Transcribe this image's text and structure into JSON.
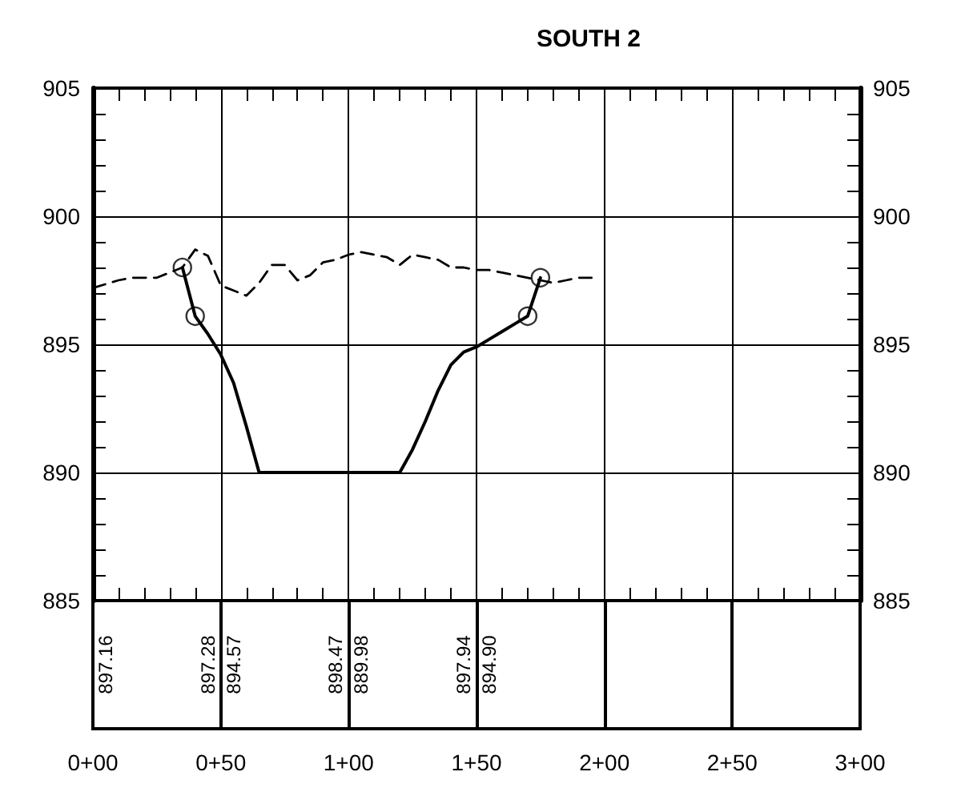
{
  "chart_data": {
    "type": "line",
    "title": "SOUTH 2",
    "categories": [
      "0+00",
      null,
      null,
      null,
      null,
      null,
      null,
      null,
      null,
      null,
      "0+50",
      null,
      null,
      null,
      null,
      null,
      null,
      null,
      null,
      null,
      "1+00",
      null,
      null,
      null,
      null,
      null,
      null,
      null,
      null,
      null,
      "1+50",
      null,
      null,
      null,
      null,
      null,
      null,
      null,
      null,
      null,
      "2+00",
      null,
      null,
      null,
      null,
      null,
      null,
      null,
      null,
      null,
      "2+50",
      null,
      null,
      null,
      null,
      null,
      null,
      null,
      null,
      null,
      "3+00"
    ],
    "ylim": [
      885,
      905
    ],
    "yticks": [
      885,
      {
        "value": 886,
        "label": null
      },
      {
        "value": 887,
        "label": null
      },
      {
        "value": 888,
        "label": null
      },
      {
        "value": 889,
        "label": null
      },
      890,
      {
        "value": 891,
        "label": null
      },
      {
        "value": 892,
        "label": null
      },
      {
        "value": 893,
        "label": null
      },
      {
        "value": 894,
        "label": null
      },
      895,
      {
        "value": 896,
        "label": null
      },
      {
        "value": 897,
        "label": null
      },
      {
        "value": 898,
        "label": null
      },
      {
        "value": 899,
        "label": null
      },
      900,
      {
        "value": 901,
        "label": null
      },
      {
        "value": 902,
        "label": null
      },
      {
        "value": 903,
        "label": null
      },
      {
        "value": 904,
        "label": null
      },
      905
    ],
    "y2lim": [
      885,
      905
    ],
    "y2ticks": [
      885,
      {
        "value": 886,
        "label": null
      },
      {
        "value": 887,
        "label": null
      },
      {
        "value": 888,
        "label": null
      },
      {
        "value": 889,
        "label": null
      },
      890,
      {
        "value": 891,
        "label": null
      },
      {
        "value": 892,
        "label": null
      },
      {
        "value": 893,
        "label": null
      },
      {
        "value": 894,
        "label": null
      },
      895,
      {
        "value": 896,
        "label": null
      },
      {
        "value": 897,
        "label": null
      },
      {
        "value": 898,
        "label": null
      },
      {
        "value": 899,
        "label": null
      },
      900,
      {
        "value": 901,
        "label": null
      },
      {
        "value": 902,
        "label": null
      },
      {
        "value": 903,
        "label": null
      },
      {
        "value": 904,
        "label": null
      },
      905
    ],
    "grid": true,
    "series": [
      {
        "color": "#000000",
        "line_style": "dashed",
        "marker": "none",
        "values": [
          897.2,
          897.35,
          897.5,
          897.6,
          897.6,
          897.6,
          897.8,
          898.0,
          898.7,
          898.45,
          897.3,
          897.1,
          896.9,
          897.4,
          898.1,
          898.1,
          897.5,
          897.7,
          898.2,
          898.3,
          898.5,
          898.6,
          898.5,
          898.4,
          898.1,
          898.5,
          898.4,
          898.3,
          898.0,
          898.0,
          897.9,
          897.9,
          897.8,
          897.7,
          897.6,
          897.5,
          897.4,
          897.5,
          897.6,
          897.6,
          null,
          null,
          null,
          null,
          null,
          null,
          null,
          null,
          null,
          null,
          null,
          null,
          null,
          null,
          null,
          null,
          null,
          null,
          null,
          null,
          null
        ]
      },
      {
        "color": "#000000",
        "line_style": "solid",
        "marker": "none",
        "values": [
          null,
          null,
          null,
          null,
          null,
          null,
          null,
          898.0,
          896.1,
          895.4,
          894.6,
          893.5,
          891.8,
          890,
          890,
          890,
          890,
          890,
          890,
          890,
          890,
          890,
          890,
          890,
          890,
          890.9,
          892.0,
          893.2,
          894.2,
          894.7,
          894.9,
          895.2,
          895.5,
          895.8,
          896.1,
          897.6,
          null,
          null,
          null,
          null,
          null,
          null,
          null,
          null,
          null,
          null,
          null,
          null,
          null,
          null,
          null,
          null,
          null,
          null,
          null,
          null,
          null,
          null,
          null,
          null,
          null
        ]
      },
      {
        "type": "scatter",
        "color": "#000000",
        "marker": "circle",
        "values": [
          null,
          null,
          null,
          null,
          null,
          null,
          null,
          898.0,
          896.1,
          null,
          null,
          null,
          null,
          null,
          null,
          null,
          null,
          null,
          null,
          null,
          null,
          null,
          null,
          null,
          null,
          null,
          null,
          null,
          null,
          null,
          null,
          null,
          null,
          null,
          896.1,
          897.6,
          null,
          null,
          null,
          null,
          null,
          null,
          null,
          null,
          null,
          null,
          null,
          null,
          null,
          null,
          null,
          null,
          null,
          null,
          null,
          null,
          null,
          null,
          null,
          null,
          null
        ]
      }
    ],
    "annotations": [
      "897.16",
      "897.28",
      "894.57",
      "898.47",
      "889.98",
      "897.94",
      "894.90"
    ]
  }
}
